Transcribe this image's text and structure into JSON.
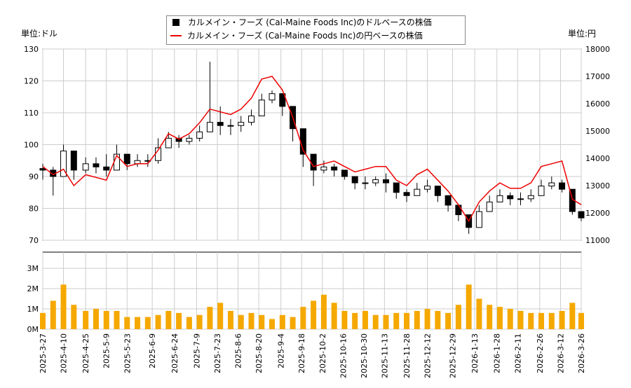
{
  "chart_data": {
    "type": "candlestick+line+bar",
    "legend": [
      "カルメイン・フーズ (Cal-Maine Foods Inc)のドルベースの株価",
      "カルメイン・フーズ (Cal-Maine Foods Inc)の円ベースの株価"
    ],
    "left_unit": "単位:ドル",
    "right_unit": "単位:円",
    "ylim_left": [
      70,
      130
    ],
    "yticks_left": [
      70,
      80,
      90,
      100,
      110,
      120,
      130
    ],
    "ylim_right": [
      11000,
      18000
    ],
    "yticks_right": [
      11000,
      12000,
      13000,
      14000,
      15000,
      16000,
      17000,
      18000
    ],
    "volume_ylim": [
      0,
      3800000
    ],
    "volume_ticks": [
      "0M",
      "1M",
      "2M",
      "3M"
    ],
    "xticks": [
      "2025-3-27",
      "2025-4-10",
      "2025-4-25",
      "2025-5-9",
      "2025-5-23",
      "2025-6-9",
      "2025-6-24",
      "2025-7-9",
      "2025-7-23",
      "2025-8-6",
      "2025-8-20",
      "2025-9-4",
      "2025-9-18",
      "2025-10-2",
      "2025-10-16",
      "2025-10-30",
      "2025-11-13",
      "2025-11-28",
      "2025-12-12",
      "2025-12-29",
      "2026-1-13",
      "2026-1-28",
      "2026-2-11",
      "2026-2-26",
      "2026-3-12",
      "2026-3-26"
    ],
    "dates": [
      "2025-3-27",
      "2025-4-3",
      "2025-4-10",
      "2025-4-17",
      "2025-4-25",
      "2025-5-2",
      "2025-5-9",
      "2025-5-16",
      "2025-5-23",
      "2025-5-30",
      "2025-6-6",
      "2025-6-13",
      "2025-6-20",
      "2025-6-27",
      "2025-7-4",
      "2025-7-11",
      "2025-7-18",
      "2025-7-25",
      "2025-8-1",
      "2025-8-8",
      "2025-8-15",
      "2025-8-22",
      "2025-8-29",
      "2025-9-5",
      "2025-9-12",
      "2025-9-19",
      "2025-9-26",
      "2025-10-3",
      "2025-10-10",
      "2025-10-17",
      "2025-10-24",
      "2025-10-31",
      "2025-11-7",
      "2025-11-14",
      "2025-11-21",
      "2025-11-28",
      "2025-12-5",
      "2025-12-12",
      "2025-12-19",
      "2025-12-26",
      "2026-1-2",
      "2026-1-9",
      "2026-1-16",
      "2026-1-23",
      "2026-1-30",
      "2026-2-6",
      "2026-2-13",
      "2026-2-20",
      "2026-2-27",
      "2026-3-6",
      "2026-3-13",
      "2026-3-20",
      "2026-3-26"
    ],
    "usd_close": [
      92,
      90,
      98,
      92,
      94,
      93,
      92,
      97,
      94,
      95,
      95,
      99,
      102,
      101,
      102,
      104,
      107,
      106,
      106,
      107,
      109,
      114,
      116,
      112,
      105,
      97,
      92,
      93,
      92,
      90,
      88,
      88,
      89,
      88,
      85,
      84,
      86,
      87,
      84,
      81,
      78,
      74,
      79,
      82,
      84,
      83,
      83,
      84,
      87,
      88,
      86,
      79,
      77
    ],
    "usd_high": [
      94,
      93,
      100,
      94,
      96,
      96,
      97,
      100,
      96,
      97,
      97,
      102,
      104,
      103,
      103,
      106,
      126,
      112,
      108,
      109,
      111,
      116,
      117,
      116,
      110,
      102,
      97,
      95,
      94,
      92,
      90,
      90,
      90,
      91,
      88,
      86,
      88,
      89,
      87,
      83,
      81,
      77,
      81,
      84,
      86,
      85,
      85,
      86,
      89,
      90,
      89,
      86,
      79
    ],
    "usd_low": [
      89,
      84,
      91,
      89,
      91,
      91,
      90,
      93,
      92,
      93,
      93,
      94,
      99,
      99,
      100,
      101,
      104,
      103,
      103,
      104,
      106,
      109,
      113,
      109,
      101,
      93,
      87,
      91,
      90,
      89,
      86,
      86,
      87,
      85,
      83,
      82,
      84,
      85,
      82,
      79,
      76,
      72,
      75,
      80,
      82,
      81,
      81,
      82,
      84,
      86,
      85,
      78,
      76
    ],
    "jpy_close": [
      13700,
      13400,
      13600,
      13000,
      13400,
      13300,
      13200,
      14100,
      13700,
      13800,
      13800,
      14300,
      14900,
      14700,
      14900,
      15300,
      15800,
      15700,
      15600,
      15800,
      16200,
      16900,
      17000,
      16500,
      15500,
      14300,
      13700,
      13800,
      13900,
      13700,
      13500,
      13600,
      13700,
      13700,
      13200,
      13000,
      13400,
      13600,
      13200,
      12800,
      12300,
      11700,
      12400,
      12800,
      13100,
      12900,
      12900,
      13100,
      13700,
      13800,
      13900,
      12500,
      12300
    ],
    "volume": [
      800000,
      1400000,
      2200000,
      1200000,
      900000,
      1000000,
      900000,
      900000,
      600000,
      600000,
      600000,
      700000,
      900000,
      800000,
      600000,
      700000,
      1100000,
      1300000,
      900000,
      700000,
      800000,
      700000,
      500000,
      700000,
      600000,
      1100000,
      1400000,
      1700000,
      1300000,
      900000,
      800000,
      900000,
      700000,
      700000,
      800000,
      800000,
      900000,
      1000000,
      900000,
      800000,
      1200000,
      2200000,
      1500000,
      1200000,
      1100000,
      1000000,
      900000,
      800000,
      800000,
      800000,
      900000,
      1300000,
      800000
    ]
  }
}
